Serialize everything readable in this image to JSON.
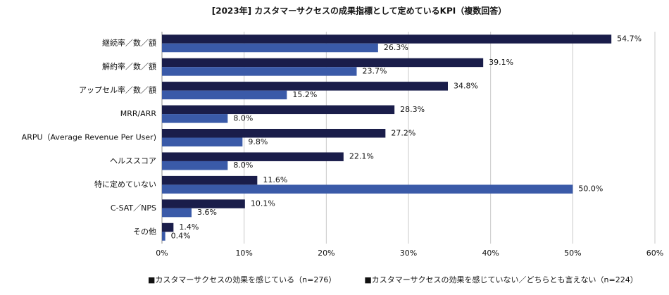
{
  "chart_data": {
    "type": "barh",
    "title": "[2023年] カスタマーサクセスの成果指標として定めているKPI（複数回答）",
    "categories": [
      "継続率／数／額",
      "解約率／数／額",
      "アップセル率／数／額",
      "MRR/ARR",
      "ARPU（Average Revenue Per User)",
      "ヘルススコア",
      "特に定めていない",
      "C-SAT／NPS",
      "その他"
    ],
    "series": [
      {
        "name": "■カスタマーサクセスの効果を感じている（n=276）",
        "color": "#1a1d4a",
        "values": [
          54.7,
          39.1,
          34.8,
          28.3,
          27.2,
          22.1,
          11.6,
          10.1,
          1.4
        ],
        "value_labels": [
          "54.7%",
          "39.1%",
          "34.8%",
          "28.3%",
          "27.2%",
          "22.1%",
          "11.6%",
          "10.1%",
          "1.4%"
        ]
      },
      {
        "name": "■カスタマーサクセスの効果を感じていない／どちらとも言えない（n=224）",
        "color": "#3a5aa8",
        "values": [
          26.3,
          23.7,
          15.2,
          8.0,
          9.8,
          8.0,
          50.0,
          3.6,
          0.4
        ],
        "value_labels": [
          "26.3%",
          "23.7%",
          "15.2%",
          "8.0%",
          "9.8%",
          "8.0%",
          "50.0%",
          "3.6%",
          "0.4%"
        ]
      }
    ],
    "xlim": [
      0,
      60
    ],
    "xticks": [
      {
        "value": 0,
        "label": "0%"
      },
      {
        "value": 10,
        "label": "10%"
      },
      {
        "value": 20,
        "label": "20%"
      },
      {
        "value": 30,
        "label": "30%"
      },
      {
        "value": 40,
        "label": "40%"
      },
      {
        "value": 50,
        "label": "50%"
      },
      {
        "value": 60,
        "label": "60%"
      }
    ],
    "grid": true,
    "legend": "bottom"
  }
}
